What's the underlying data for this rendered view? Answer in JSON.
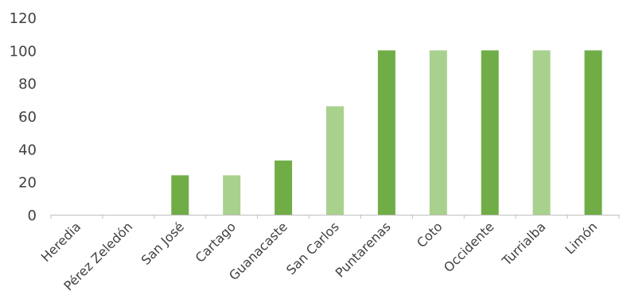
{
  "chart_data": {
    "type": "bar",
    "title": "",
    "xlabel": "",
    "ylabel": "",
    "ylim": [
      0,
      120
    ],
    "yticks": [
      0,
      20,
      40,
      60,
      80,
      100,
      120
    ],
    "grid": false,
    "categories": [
      "Heredia",
      "Pérez Zeledón",
      "San José",
      "Cartago",
      "Guanacaste",
      "San Carlos",
      "Puntarenas",
      "Coto",
      "Occidente",
      "Turrialba",
      "Limón"
    ],
    "values": [
      0,
      0,
      24,
      24,
      33,
      66,
      100,
      100,
      100,
      100,
      100
    ],
    "bar_colors": [
      "#70ad47",
      "#a9d18e",
      "#70ad47",
      "#a9d18e",
      "#70ad47",
      "#a9d18e",
      "#70ad47",
      "#a9d18e",
      "#70ad47",
      "#a9d18e",
      "#70ad47"
    ],
    "axis_color": "#bfbfbf"
  }
}
